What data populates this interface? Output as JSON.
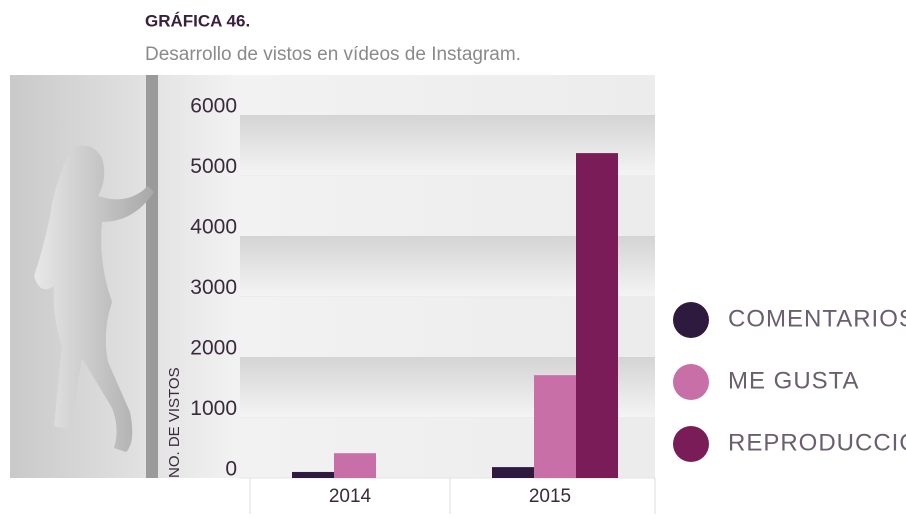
{
  "chart_data": {
    "type": "bar",
    "title": "GRÁFICA 46.",
    "subtitle": "Desarrollo de vistos en vídeos de Instagram.",
    "y_label": "NO. DE VISTOS",
    "categories": [
      "2014",
      "2015"
    ],
    "series": [
      {
        "name": "COMENTARIOS",
        "color": "#2e1a3f",
        "values": [
          100,
          180
        ]
      },
      {
        "name": "ME GUSTA",
        "color": "#c86fa8",
        "values": [
          410,
          1700
        ]
      },
      {
        "name": "REPRODUCCIONES",
        "color": "#7a1c57",
        "values": [
          0,
          5370
        ]
      }
    ],
    "ylim": [
      0,
      6000
    ],
    "yticks": [
      0,
      1000,
      2000,
      3000,
      4000,
      5000,
      6000
    ],
    "legend": "right"
  }
}
